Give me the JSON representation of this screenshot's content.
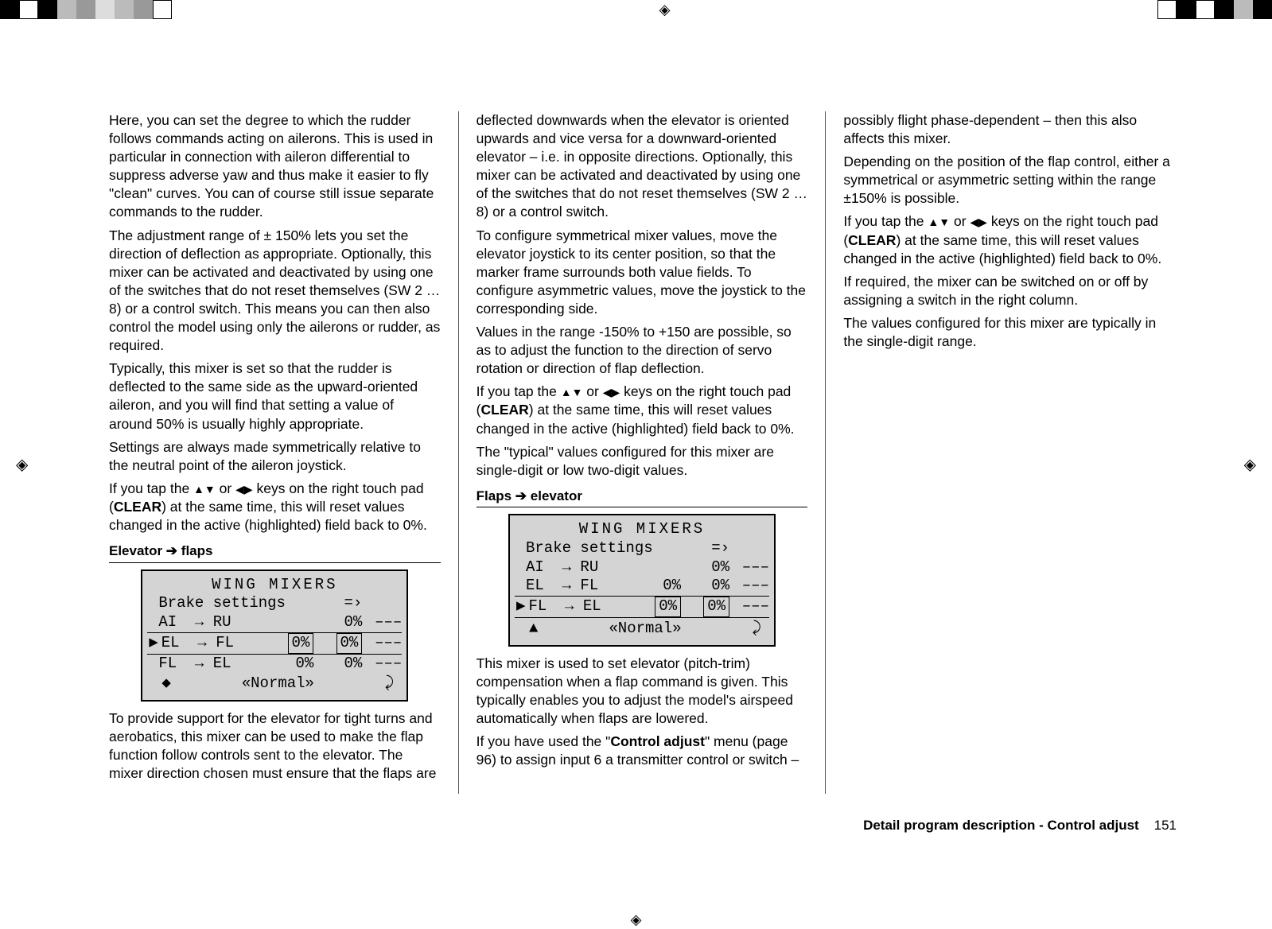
{
  "col1": {
    "p1": "Here, you can set the degree to which the rudder follows commands acting on ailerons. This is used in particular in connection with aileron differential to suppress adverse yaw and thus make it easier to fly \"clean\" curves. You can of course still issue separate commands to the rudder.",
    "p2": "The adjustment range of ± 150% lets you set the direction of deflection as appropriate. Optionally, this mixer can be activated and deactivated by using one of the switches that do not reset themselves (SW 2 … 8) or a control switch. This means you can then also control the model using only the ailerons or rudder, as required.",
    "p3": "Typically, this mixer is set so that the rudder is deflected to the same side as the upward-oriented aileron, and you will find that setting a value of around 50% is usually highly appropriate.",
    "p4": "Settings are always made symmetrically relative to the neutral point of the aileron joystick.",
    "p5_a": "If you tap the ",
    "p5_b": " or ",
    "p5_c": " keys on the right touch pad (",
    "p5_clear": "CLEAR",
    "p5_d": ") at the same time, this will reset values changed in the active (highlighted) field back to 0%.",
    "heading": "Elevator ➔ flaps",
    "lcd": {
      "title": "WING  MIXERS",
      "brake": "Brake settings",
      "brake_sym": "=›",
      "r1_lbl": "AI  → RU",
      "r1_v": "0%",
      "r1_sw": "–––",
      "r2_lbl": "EL  → FL",
      "r2_v1": "0%",
      "r2_v2": "0%",
      "r2_sw": "–––",
      "r3_lbl": "FL  → EL",
      "r3_v1": "0%",
      "r3_v2": "0%",
      "r3_sw": "–––",
      "foot_left": "◆",
      "foot_mid": "«Normal»",
      "foot_right": "⤸"
    },
    "p6": "To provide support for the elevator for tight turns and aerobatics, this mixer can be used to make the flap function follow controls sent to the elevator. The mixer direction chosen must ensure that the flaps are"
  },
  "col2": {
    "p1": "deflected downwards when the elevator is oriented upwards and vice versa for a downward-oriented elevator – i.e. in opposite directions.  Optionally, this mixer can be activated and deactivated by using one of the switches that do not reset themselves (SW 2 … 8) or a control switch.",
    "p2": "To configure symmetrical mixer values, move the elevator joystick to its center position, so that the marker frame surrounds both value fields. To configure asymmetric values, move the joystick to the corresponding side.",
    "p3": "Values in the range -150% to +150 are possible, so as to adjust the function to the direction of servo rotation or direction of flap deflection.",
    "p4_a": "If you tap the ",
    "p4_b": " or ",
    "p4_c": " keys on the right touch pad (",
    "p4_clear": "CLEAR",
    "p4_d": ") at the same time, this will reset values changed in the active (highlighted) field back to 0%.",
    "p5": "The \"typical\" values configured for this mixer are single-digit or low two-digit values.",
    "heading": "Flaps ➔ elevator",
    "lcd": {
      "title": "WING  MIXERS",
      "brake": "Brake settings",
      "brake_sym": "=›",
      "r1_lbl": "AI  → RU",
      "r1_v": "0%",
      "r1_sw": "–––",
      "r2_lbl": "EL  → FL",
      "r2_v1": "0%",
      "r2_v2": "0%",
      "r2_sw": "–––",
      "r3_lbl": "FL  → EL",
      "r3_v1": "0%",
      "r3_v2": "0%",
      "r3_sw": "–––",
      "foot_left": "▲",
      "foot_mid": "«Normal»",
      "foot_right": "⤸"
    },
    "p6": "This mixer is used to set elevator (pitch-trim) compensation when a flap command is given. This typically enables you to adjust the model's airspeed automatically when flaps are lowered.",
    "p7_a": "If you have used the \"",
    "p7_bold": "Control adjust",
    "p7_b": "\" menu (page 96) to assign input 6 a transmitter control or switch –"
  },
  "col3": {
    "p1": "possibly flight phase-dependent – then this also affects this mixer.",
    "p2": "Depending on the position of the flap control, either a symmetrical or asymmetric setting within the range ±150% is possible.",
    "p3_a": "If you tap the ",
    "p3_b": " or ",
    "p3_c": " keys on the right touch pad (",
    "p3_clear": "CLEAR",
    "p3_d": ") at the same time, this will reset values changed in the active (highlighted) field back to 0%.",
    "p4": "If required, the mixer can be switched on or off by assigning a switch in the right column.",
    "p5": "The values configured for this mixer are typically in the single-digit range."
  },
  "footer": {
    "text": "Detail program description - Control adjust",
    "page": "151"
  },
  "glyphs": {
    "ud": "▲▼",
    "lr": "◀▶",
    "reg_circle": "◈",
    "sel_cursor": "▶"
  }
}
